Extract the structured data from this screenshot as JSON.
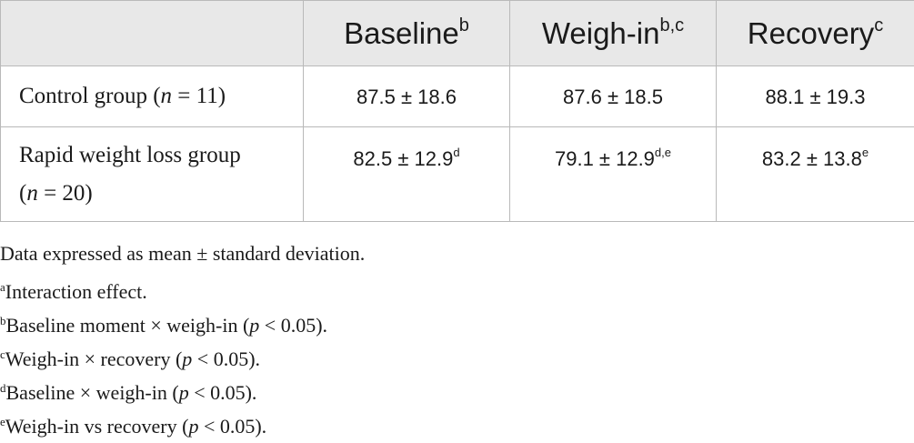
{
  "table": {
    "columns": [
      {
        "label": "",
        "sup": ""
      },
      {
        "label": "Baseline",
        "sup": "b"
      },
      {
        "label": "Weigh-in",
        "sup": "b,c"
      },
      {
        "label": "Recovery",
        "sup": "c"
      }
    ],
    "rows": [
      {
        "label_pre": "Control group (",
        "label_var": "n",
        "label_post": " = 11)",
        "cells": [
          {
            "value": "87.5 ± 18.6",
            "sup": ""
          },
          {
            "value": "87.6 ± 18.5",
            "sup": ""
          },
          {
            "value": "88.1 ± 19.3",
            "sup": ""
          }
        ]
      },
      {
        "label_pre": "Rapid weight loss group",
        "label_line2_pre": "(",
        "label_var": "n",
        "label_post": " = 20)",
        "cells": [
          {
            "value": "82.5 ± 12.9",
            "sup": "d"
          },
          {
            "value": "79.1 ± 12.9",
            "sup": "d,e"
          },
          {
            "value": "83.2 ± 13.8",
            "sup": "e"
          }
        ]
      }
    ]
  },
  "footnotes": {
    "general": "Data expressed as mean ± standard deviation.",
    "a": {
      "mark": "a",
      "text": "Interaction effect."
    },
    "b": {
      "mark": "b",
      "text": "Baseline moment × weigh-in (",
      "p": "p",
      "rest": " < 0.05)."
    },
    "c": {
      "mark": "c",
      "text": "Weigh-in × recovery (",
      "p": "p",
      "rest": " < 0.05)."
    },
    "d": {
      "mark": "d",
      "text": "Baseline × weigh-in (",
      "p": "p",
      "rest": " < 0.05)."
    },
    "e": {
      "mark": "e",
      "text": "Weigh-in vs recovery (",
      "p": "p",
      "rest": " < 0.05)."
    }
  }
}
